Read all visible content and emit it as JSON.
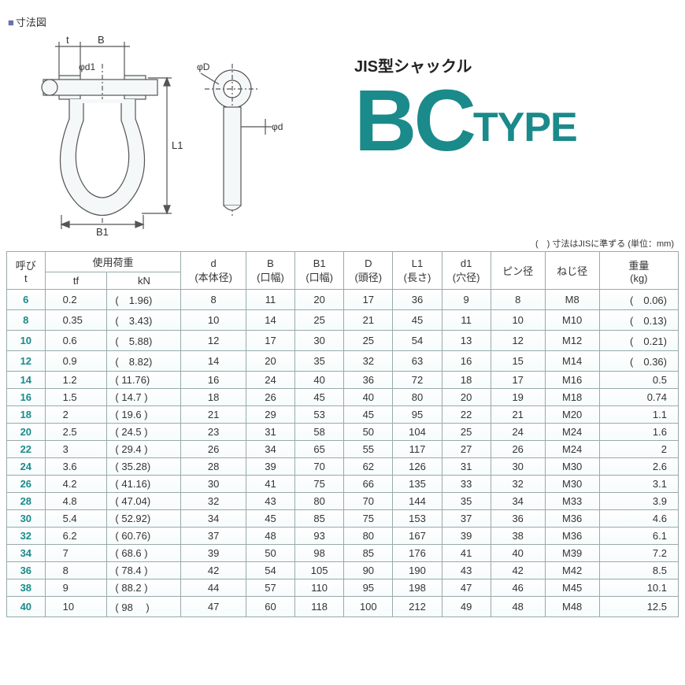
{
  "header": {
    "diagram_label": "寸法図",
    "pretitle": "JIS型シャックル",
    "title_bc": "BC",
    "title_type": "TYPE"
  },
  "diagram_labels": {
    "t": "t",
    "B": "B",
    "d1": "φd1",
    "L1": "L1",
    "B1": "B1",
    "D": "φD",
    "d": "φd"
  },
  "table": {
    "note": "(　) 寸法はJISに準ずる (単位：mm)",
    "columns": {
      "nobi": "呼び\nt",
      "load": "使用荷重",
      "tf": "tf",
      "kn": "kN",
      "d": "d\n(本体径)",
      "B": "B\n(口幅)",
      "B1": "B1\n(口幅)",
      "D": "D\n(頭径)",
      "L1": "L1\n(長さ)",
      "d1": "d1\n(穴径)",
      "pin": "ピン径",
      "thread": "ねじ径",
      "weight": "重量\n(kg)"
    },
    "rows": [
      {
        "nobi": "6",
        "tf": "0.2",
        "kn": "(　1.96)",
        "d": "8",
        "B": "11",
        "B1": "20",
        "D": "17",
        "L1": "36",
        "d1": "9",
        "pin": "8",
        "thread": "M8",
        "weight": "(　0.06)"
      },
      {
        "nobi": "8",
        "tf": "0.35",
        "kn": "(　3.43)",
        "d": "10",
        "B": "14",
        "B1": "25",
        "D": "21",
        "L1": "45",
        "d1": "11",
        "pin": "10",
        "thread": "M10",
        "weight": "(　0.13)"
      },
      {
        "nobi": "10",
        "tf": "0.6",
        "kn": "(　5.88)",
        "d": "12",
        "B": "17",
        "B1": "30",
        "D": "25",
        "L1": "54",
        "d1": "13",
        "pin": "12",
        "thread": "M12",
        "weight": "(　0.21)"
      },
      {
        "nobi": "12",
        "tf": "0.9",
        "kn": "(　8.82)",
        "d": "14",
        "B": "20",
        "B1": "35",
        "D": "32",
        "L1": "63",
        "d1": "16",
        "pin": "15",
        "thread": "M14",
        "weight": "(　0.36)"
      },
      {
        "nobi": "14",
        "tf": "1.2",
        "kn": "( 11.76)",
        "d": "16",
        "B": "24",
        "B1": "40",
        "D": "36",
        "L1": "72",
        "d1": "18",
        "pin": "17",
        "thread": "M16",
        "weight": "0.5"
      },
      {
        "nobi": "16",
        "tf": "1.5",
        "kn": "( 14.7 )",
        "d": "18",
        "B": "26",
        "B1": "45",
        "D": "40",
        "L1": "80",
        "d1": "20",
        "pin": "19",
        "thread": "M18",
        "weight": "0.74"
      },
      {
        "nobi": "18",
        "tf": "2",
        "kn": "( 19.6 )",
        "d": "21",
        "B": "29",
        "B1": "53",
        "D": "45",
        "L1": "95",
        "d1": "22",
        "pin": "21",
        "thread": "M20",
        "weight": "1.1"
      },
      {
        "nobi": "20",
        "tf": "2.5",
        "kn": "( 24.5 )",
        "d": "23",
        "B": "31",
        "B1": "58",
        "D": "50",
        "L1": "104",
        "d1": "25",
        "pin": "24",
        "thread": "M24",
        "weight": "1.6"
      },
      {
        "nobi": "22",
        "tf": "3",
        "kn": "( 29.4 )",
        "d": "26",
        "B": "34",
        "B1": "65",
        "D": "55",
        "L1": "117",
        "d1": "27",
        "pin": "26",
        "thread": "M24",
        "weight": "2"
      },
      {
        "nobi": "24",
        "tf": "3.6",
        "kn": "( 35.28)",
        "d": "28",
        "B": "39",
        "B1": "70",
        "D": "62",
        "L1": "126",
        "d1": "31",
        "pin": "30",
        "thread": "M30",
        "weight": "2.6"
      },
      {
        "nobi": "26",
        "tf": "4.2",
        "kn": "( 41.16)",
        "d": "30",
        "B": "41",
        "B1": "75",
        "D": "66",
        "L1": "135",
        "d1": "33",
        "pin": "32",
        "thread": "M30",
        "weight": "3.1"
      },
      {
        "nobi": "28",
        "tf": "4.8",
        "kn": "( 47.04)",
        "d": "32",
        "B": "43",
        "B1": "80",
        "D": "70",
        "L1": "144",
        "d1": "35",
        "pin": "34",
        "thread": "M33",
        "weight": "3.9"
      },
      {
        "nobi": "30",
        "tf": "5.4",
        "kn": "( 52.92)",
        "d": "34",
        "B": "45",
        "B1": "85",
        "D": "75",
        "L1": "153",
        "d1": "37",
        "pin": "36",
        "thread": "M36",
        "weight": "4.6"
      },
      {
        "nobi": "32",
        "tf": "6.2",
        "kn": "( 60.76)",
        "d": "37",
        "B": "48",
        "B1": "93",
        "D": "80",
        "L1": "167",
        "d1": "39",
        "pin": "38",
        "thread": "M36",
        "weight": "6.1"
      },
      {
        "nobi": "34",
        "tf": "7",
        "kn": "( 68.6 )",
        "d": "39",
        "B": "50",
        "B1": "98",
        "D": "85",
        "L1": "176",
        "d1": "41",
        "pin": "40",
        "thread": "M39",
        "weight": "7.2"
      },
      {
        "nobi": "36",
        "tf": "8",
        "kn": "( 78.4 )",
        "d": "42",
        "B": "54",
        "B1": "105",
        "D": "90",
        "L1": "190",
        "d1": "43",
        "pin": "42",
        "thread": "M42",
        "weight": "8.5"
      },
      {
        "nobi": "38",
        "tf": "9",
        "kn": "( 88.2 )",
        "d": "44",
        "B": "57",
        "B1": "110",
        "D": "95",
        "L1": "198",
        "d1": "47",
        "pin": "46",
        "thread": "M45",
        "weight": "10.1"
      },
      {
        "nobi": "40",
        "tf": "10",
        "kn": "( 98　 )",
        "d": "47",
        "B": "60",
        "B1": "118",
        "D": "100",
        "L1": "212",
        "d1": "49",
        "pin": "48",
        "thread": "M48",
        "weight": "12.5"
      }
    ]
  },
  "colors": {
    "accent": "#1a8a8a",
    "border": "#99aaaa",
    "bullet": "#6a6fb0"
  }
}
